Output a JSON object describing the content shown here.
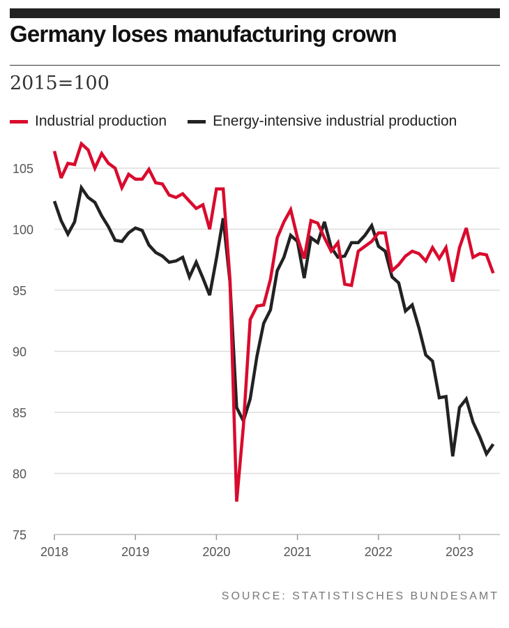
{
  "header": {
    "title": "Germany loses manufacturing crown",
    "subtitle": "2015=100"
  },
  "source": "SOURCE: STATISTISCHES BUNDESAMT",
  "chart_data": {
    "type": "line",
    "title": "Germany loses manufacturing crown",
    "subtitle": "2015=100",
    "xlabel": "",
    "ylabel": "",
    "ylim": [
      75,
      108
    ],
    "yticks": [
      75,
      80,
      85,
      90,
      95,
      100,
      105
    ],
    "xticks": [
      "2018",
      "2019",
      "2020",
      "2021",
      "2022",
      "2023"
    ],
    "x_start": "2018-01",
    "x_frequency": "monthly",
    "grid": "horizontal",
    "legend": "top-left",
    "series": [
      {
        "name": "Industrial production",
        "color": "#d90b2d",
        "values": [
          106.4,
          104.2,
          105.4,
          105.3,
          107.0,
          106.5,
          105.0,
          106.2,
          105.4,
          105.0,
          103.4,
          104.5,
          104.1,
          104.1,
          104.9,
          103.8,
          103.7,
          102.8,
          102.6,
          102.9,
          102.3,
          101.7,
          102.0,
          100.0,
          103.3,
          103.3,
          95.9,
          77.7,
          83.9,
          92.6,
          93.7,
          93.8,
          95.9,
          99.3,
          100.6,
          101.6,
          99.3,
          97.6,
          100.7,
          100.5,
          99.3,
          98.2,
          98.9,
          95.5,
          95.4,
          98.2,
          98.6,
          99.0,
          99.7,
          99.7,
          96.6,
          97.1,
          97.8,
          98.2,
          98.0,
          97.4,
          98.5,
          97.6,
          98.5,
          95.7,
          98.5,
          100.1,
          97.7,
          98.0,
          97.9,
          96.4
        ]
      },
      {
        "name": "Energy-intensive industrial production",
        "color": "#222222",
        "values": [
          102.3,
          100.7,
          99.6,
          100.6,
          103.4,
          102.6,
          102.2,
          101.1,
          100.2,
          99.1,
          99.0,
          99.7,
          100.1,
          99.9,
          98.7,
          98.1,
          97.8,
          97.3,
          97.4,
          97.7,
          96.1,
          97.3,
          96.0,
          94.6,
          97.6,
          100.9,
          95.7,
          85.4,
          84.3,
          86.1,
          89.6,
          92.3,
          93.4,
          96.6,
          97.7,
          99.5,
          99.0,
          96.0,
          99.3,
          98.9,
          100.6,
          98.5,
          97.7,
          97.8,
          98.9,
          98.9,
          99.5,
          100.3,
          98.6,
          98.2,
          96.1,
          95.6,
          93.3,
          93.8,
          91.9,
          89.7,
          89.2,
          86.2,
          86.3,
          81.4,
          85.4,
          86.1,
          84.2,
          83.0,
          81.6,
          82.4
        ]
      }
    ]
  }
}
